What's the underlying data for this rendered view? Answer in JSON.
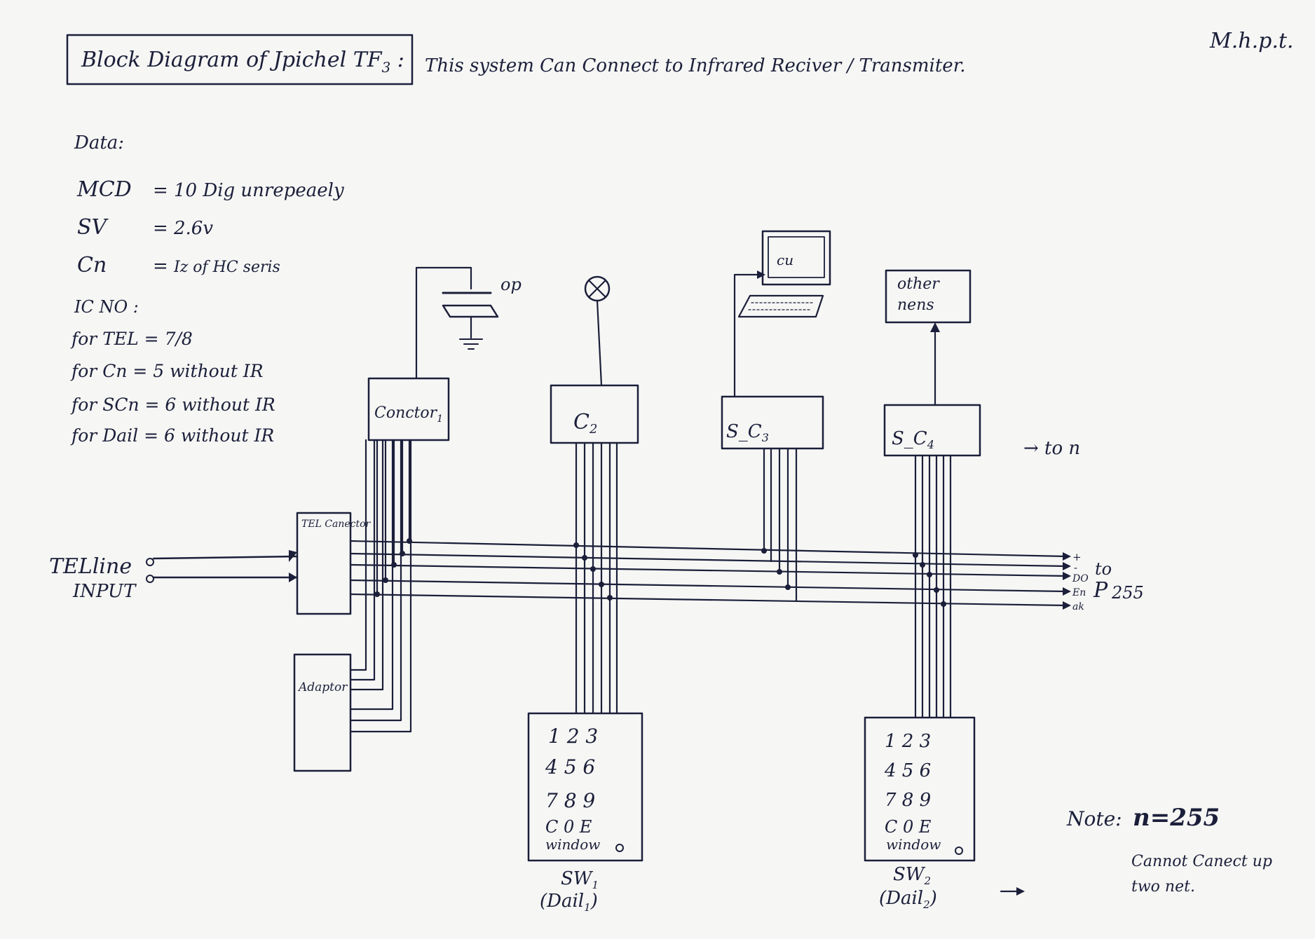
{
  "title_box": "Block Diagram of Jpichel TF",
  "title_sub": "3",
  "title_note": "This system Can Connect to Infrared Reciver / Transmiter.",
  "signature": "M.h.p.t.",
  "data": {
    "heading": "Data:",
    "rows": [
      {
        "key": "MCD",
        "eq": "=",
        "val": "10 Dig unrepeaely"
      },
      {
        "key": "SV",
        "eq": "=",
        "val": "2.6v"
      },
      {
        "key": "Cn",
        "eq": "=",
        "val": "Iz of HC seris"
      }
    ]
  },
  "ic": {
    "heading": "IC NO :",
    "rows": [
      "for TEL = 7/8",
      "for Cn = 5 without IR",
      "for SCn = 6 without IR",
      "for Dail = 6 without IR"
    ]
  },
  "blocks": {
    "tel_conector": "TEL Canector",
    "adaptor": "Adaptor",
    "conctor1": "Conctor",
    "conctor1_sub": "1",
    "c2": "C",
    "c2_sub": "2",
    "sc3": "S_C",
    "sc3_sub": "3",
    "sc4": "S_C",
    "sc4_sub": "4",
    "other_nens_1": "other",
    "other_nens_2": "nens",
    "cu": "cu",
    "op": "op"
  },
  "telline": {
    "line1": "TELline",
    "line2": "INPUT"
  },
  "to_n": "→ to  n",
  "bus": {
    "labels": [
      "+",
      "-",
      "DO",
      "En",
      "ak"
    ],
    "to_label": "to",
    "p_label": "P",
    "p_value": "255"
  },
  "keypads": [
    {
      "rows": [
        "1  2  3",
        "4  5  6",
        "7  8  9",
        "C  0  E"
      ],
      "window": "window",
      "label": "SW",
      "label_sub": "1",
      "sub": "(Dail",
      "sub_sub": "1",
      "sub_end": ")"
    },
    {
      "rows": [
        "1  2  3",
        "4  5  6",
        "7  8  9",
        "C  0  E"
      ],
      "window": "window",
      "label": "SW",
      "label_sub": "2",
      "sub": "(Dail",
      "sub_sub": "2",
      "sub_end": ")"
    }
  ],
  "note": {
    "label": "Note:",
    "value": "n=255",
    "line1": "Cannot Canect up",
    "line2": "two net."
  },
  "colors": {
    "ink": "#1b1f3a",
    "paper": "#f6f6f4"
  }
}
